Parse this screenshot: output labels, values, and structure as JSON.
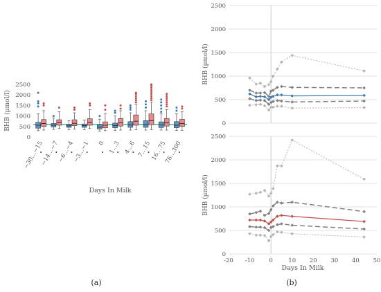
{
  "panel_labels": {
    "a": "(a)",
    "b": "(b)"
  },
  "colors": {
    "blue": "#3f78ad",
    "red": "#c0504d",
    "blue_box": "#5f93c4",
    "red_box": "#e8898b",
    "threshold": "#20b08a",
    "gray_dark": "#7f7f7f",
    "gray_light": "#b3b3b3",
    "grid": "#d9d9d9"
  },
  "chart_data": [
    {
      "type": "box",
      "panel": "a",
      "ylabel": "BHB (µmol/l)",
      "xlabel": "Days In Milk",
      "ylim": [
        0,
        2500
      ],
      "yticks": [
        0,
        500,
        1000,
        1500,
        2000,
        2500
      ],
      "categories": [
        "−30…−15",
        "−14…−7",
        "−6…−4",
        "−3…−1",
        "0",
        "1…3",
        "4…6",
        "7…15",
        "16…75",
        "76…300"
      ],
      "threshold": 600,
      "series": [
        {
          "color": "blue",
          "boxes": [
            {
              "min": 300,
              "q1": 420,
              "med": 560,
              "q3": 700,
              "max": 1100,
              "outliers": [
                1450,
                1600,
                1700,
                2100
              ]
            },
            {
              "min": 360,
              "q1": 480,
              "med": 560,
              "q3": 640,
              "max": 900,
              "outliers": [
                1000
              ]
            },
            {
              "min": 350,
              "q1": 460,
              "med": 530,
              "q3": 610,
              "max": 780,
              "outliers": []
            },
            {
              "min": 350,
              "q1": 460,
              "med": 540,
              "q3": 620,
              "max": 800,
              "outliers": []
            },
            {
              "min": 280,
              "q1": 380,
              "med": 470,
              "q3": 590,
              "max": 850,
              "outliers": [
                1000
              ]
            },
            {
              "min": 320,
              "q1": 440,
              "med": 540,
              "q3": 660,
              "max": 1000,
              "outliers": [
                1150,
                1250
              ]
            },
            {
              "min": 330,
              "q1": 460,
              "med": 570,
              "q3": 730,
              "max": 1150,
              "outliers": [
                1300,
                1400,
                1500
              ]
            },
            {
              "min": 330,
              "q1": 460,
              "med": 580,
              "q3": 780,
              "max": 1250,
              "outliers": [
                1400,
                1550,
                1700
              ]
            },
            {
              "min": 330,
              "q1": 450,
              "med": 570,
              "q3": 720,
              "max": 1100,
              "outliers": [
                1200,
                1350,
                1500,
                1650,
                1780
              ]
            },
            {
              "min": 320,
              "q1": 440,
              "med": 560,
              "q3": 730,
              "max": 1100,
              "outliers": [
                1250,
                1400
              ]
            }
          ]
        },
        {
          "color": "red",
          "boxes": [
            {
              "min": 330,
              "q1": 500,
              "med": 640,
              "q3": 830,
              "max": 1250,
              "outliers": [
                1500,
                1600
              ]
            },
            {
              "min": 400,
              "q1": 560,
              "med": 680,
              "q3": 820,
              "max": 1200,
              "outliers": [
                1400
              ]
            },
            {
              "min": 380,
              "q1": 540,
              "med": 650,
              "q3": 820,
              "max": 1150,
              "outliers": [
                1300,
                1400
              ]
            },
            {
              "min": 400,
              "q1": 560,
              "med": 690,
              "q3": 870,
              "max": 1300,
              "outliers": [
                1500,
                1600
              ]
            },
            {
              "min": 300,
              "q1": 440,
              "med": 560,
              "q3": 720,
              "max": 1100,
              "outliers": [
                1300,
                1500
              ]
            },
            {
              "min": 330,
              "q1": 520,
              "med": 670,
              "q3": 880,
              "max": 1250,
              "outliers": [
                1350,
                1500
              ]
            },
            {
              "min": 350,
              "q1": 560,
              "med": 750,
              "q3": 1050,
              "max": 1550,
              "outliers": [
                1650,
                1750,
                1850,
                1950,
                2050,
                2100
              ]
            },
            {
              "min": 350,
              "q1": 580,
              "med": 780,
              "q3": 1100,
              "max": 1650,
              "outliers": [
                1750,
                1850,
                1950,
                2050,
                2150,
                2250,
                2350,
                2450,
                2500
              ]
            },
            {
              "min": 330,
              "q1": 520,
              "med": 670,
              "q3": 880,
              "max": 1300,
              "outliers": [
                1450,
                1550,
                1650,
                1750,
                1850,
                1950,
                2050
              ]
            },
            {
              "min": 320,
              "q1": 500,
              "med": 640,
              "q3": 840,
              "max": 1200,
              "outliers": [
                1350,
                1450
              ]
            }
          ]
        }
      ]
    },
    {
      "type": "line",
      "panel": "b-top",
      "ylabel": "BHB (µmol/l)",
      "ylim": [
        0,
        2500
      ],
      "xlim": [
        -20,
        50
      ],
      "yticks": [
        0,
        500,
        1000,
        1500,
        2000,
        2500
      ],
      "x": [
        -10,
        -7,
        -5,
        -3,
        -1,
        0,
        1,
        3,
        5,
        10,
        44
      ],
      "series": [
        {
          "style": "dotted-light",
          "values": [
            960,
            830,
            850,
            780,
            820,
            880,
            1000,
            1150,
            1300,
            1440,
            1110
          ]
        },
        {
          "style": "dashed-dark",
          "values": [
            700,
            640,
            640,
            650,
            570,
            680,
            700,
            760,
            780,
            760,
            750
          ]
        },
        {
          "style": "solid-blue",
          "values": [
            620,
            560,
            570,
            560,
            500,
            550,
            570,
            600,
            600,
            580,
            590
          ]
        },
        {
          "style": "dashed-dark",
          "values": [
            520,
            480,
            490,
            480,
            400,
            440,
            460,
            480,
            470,
            450,
            470
          ]
        },
        {
          "style": "dotted-light",
          "values": [
            380,
            390,
            400,
            370,
            280,
            340,
            340,
            360,
            360,
            320,
            330
          ]
        }
      ]
    },
    {
      "type": "line",
      "panel": "b-bottom",
      "ylabel": "BHB (µmol/l)",
      "xlabel": "Days In Milk",
      "ylim": [
        0,
        2500
      ],
      "xlim": [
        -20,
        50
      ],
      "yticks": [
        0,
        500,
        1000,
        1500,
        2000,
        2500
      ],
      "xticks": [
        -20,
        -10,
        0,
        10,
        20,
        30,
        40,
        50
      ],
      "x": [
        -10,
        -7,
        -5,
        -3,
        -1,
        0,
        1,
        3,
        5,
        10,
        44
      ],
      "series": [
        {
          "style": "dotted-light",
          "values": [
            1270,
            1290,
            1310,
            1350,
            1230,
            1290,
            1390,
            1870,
            1870,
            2420,
            1590
          ]
        },
        {
          "style": "dashed-dark",
          "values": [
            850,
            880,
            910,
            820,
            860,
            940,
            1020,
            1100,
            1080,
            1100,
            900
          ]
        },
        {
          "style": "solid-red",
          "values": [
            720,
            720,
            720,
            700,
            640,
            680,
            720,
            800,
            820,
            800,
            690
          ]
        },
        {
          "style": "dashed-dark",
          "values": [
            580,
            570,
            570,
            560,
            500,
            560,
            580,
            620,
            640,
            610,
            530
          ]
        },
        {
          "style": "dotted-light",
          "values": [
            430,
            400,
            400,
            390,
            280,
            370,
            410,
            470,
            460,
            430,
            360
          ]
        }
      ]
    }
  ]
}
